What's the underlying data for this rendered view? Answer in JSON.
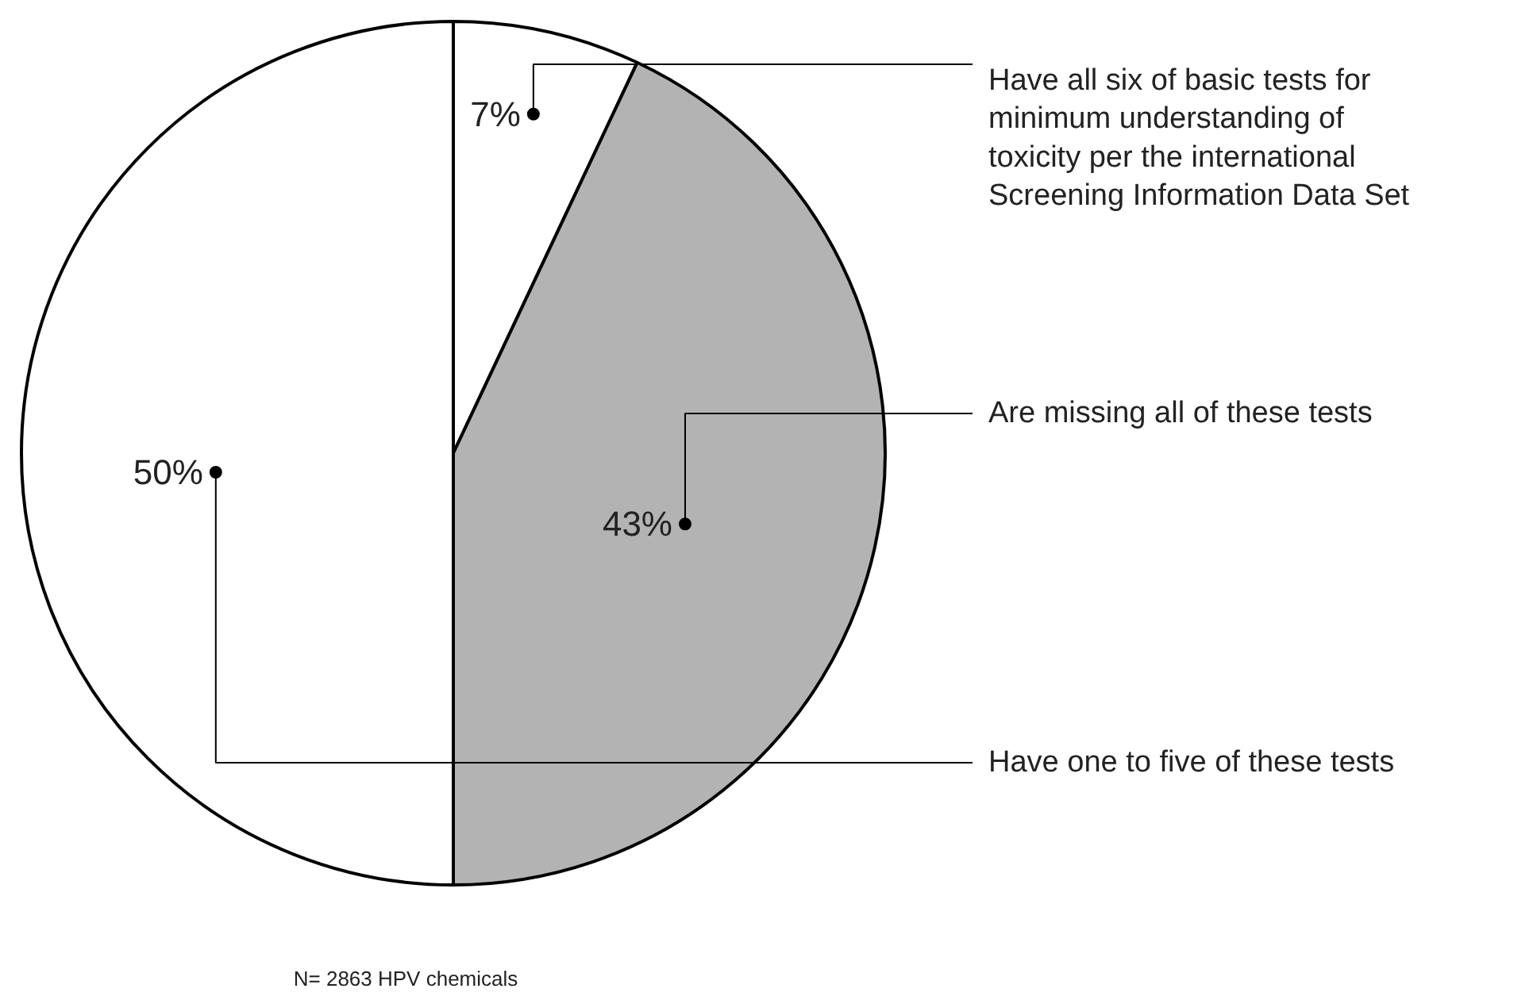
{
  "chart_data": {
    "type": "pie",
    "categories": [
      "Have all six of basic tests for minimum understanding of toxicity per the international Screening Information Data Set",
      "Are missing all of these tests",
      "Have one to five of these tests"
    ],
    "values": [
      7,
      43,
      50
    ],
    "colors": [
      "#ffffff",
      "#b3b3b3",
      "#ffffff"
    ],
    "value_labels": [
      "7%",
      "43%",
      "50%"
    ],
    "annotations": [
      "N= 2863 HPV chemicals"
    ]
  }
}
